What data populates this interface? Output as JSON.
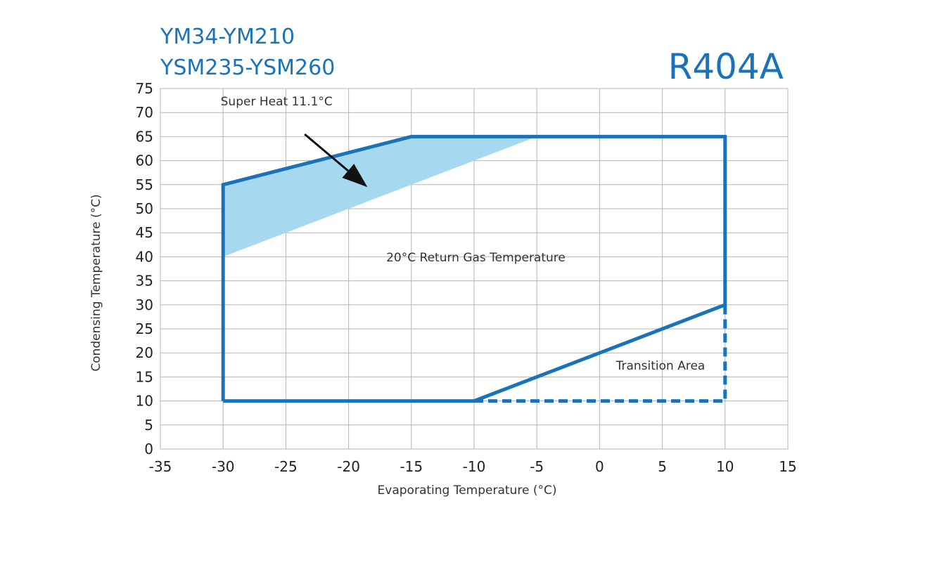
{
  "header": {
    "model_line_1": "YM34-YM210",
    "model_line_2": "YSM235-YSM260",
    "refrigerant": "R404A"
  },
  "colors": {
    "envelope": "#1a73b8",
    "superheat_fill": "#a6d8ef",
    "grid": "#b5b5b5",
    "arrow": "#111111"
  },
  "chart_data": {
    "type": "area",
    "title": "",
    "xlabel": "Evaporating Temperature (°C)",
    "ylabel": "Condensing Temperature (°C)",
    "xlim": [
      -35,
      15
    ],
    "ylim": [
      0,
      75
    ],
    "x_ticks": [
      -35,
      -30,
      -25,
      -20,
      -15,
      -10,
      -5,
      0,
      5,
      10,
      15
    ],
    "y_ticks": [
      0,
      5,
      10,
      15,
      20,
      25,
      30,
      35,
      40,
      45,
      50,
      55,
      60,
      65,
      70,
      75
    ],
    "grid": true,
    "series": [
      {
        "name": "20°C Return Gas Temperature",
        "style": "solid",
        "points": [
          [
            -30,
            10
          ],
          [
            -30,
            55
          ],
          [
            -15,
            65
          ],
          [
            10,
            65
          ],
          [
            10,
            30
          ],
          [
            -10,
            10
          ],
          [
            -30,
            10
          ]
        ]
      },
      {
        "name": "Transition Area",
        "style": "dashed",
        "points": [
          [
            -10,
            10
          ],
          [
            10,
            10
          ],
          [
            10,
            30
          ]
        ]
      },
      {
        "name": "Super Heat 11.1°C",
        "style": "fill",
        "points": [
          [
            -30,
            40
          ],
          [
            -30,
            55
          ],
          [
            -15,
            65
          ],
          [
            -5,
            65
          ]
        ]
      }
    ],
    "annotations": [
      {
        "text": "Super Heat 11.1°C",
        "x": -30.2,
        "y": 71.5
      },
      {
        "text": "20°C Return Gas Temperature",
        "x": -17,
        "y": 39
      },
      {
        "text": "Transition Area",
        "x": 1.3,
        "y": 16.5
      }
    ],
    "arrow": {
      "from": [
        -23.5,
        65.5
      ],
      "to": [
        -18.5,
        54.5
      ]
    }
  }
}
